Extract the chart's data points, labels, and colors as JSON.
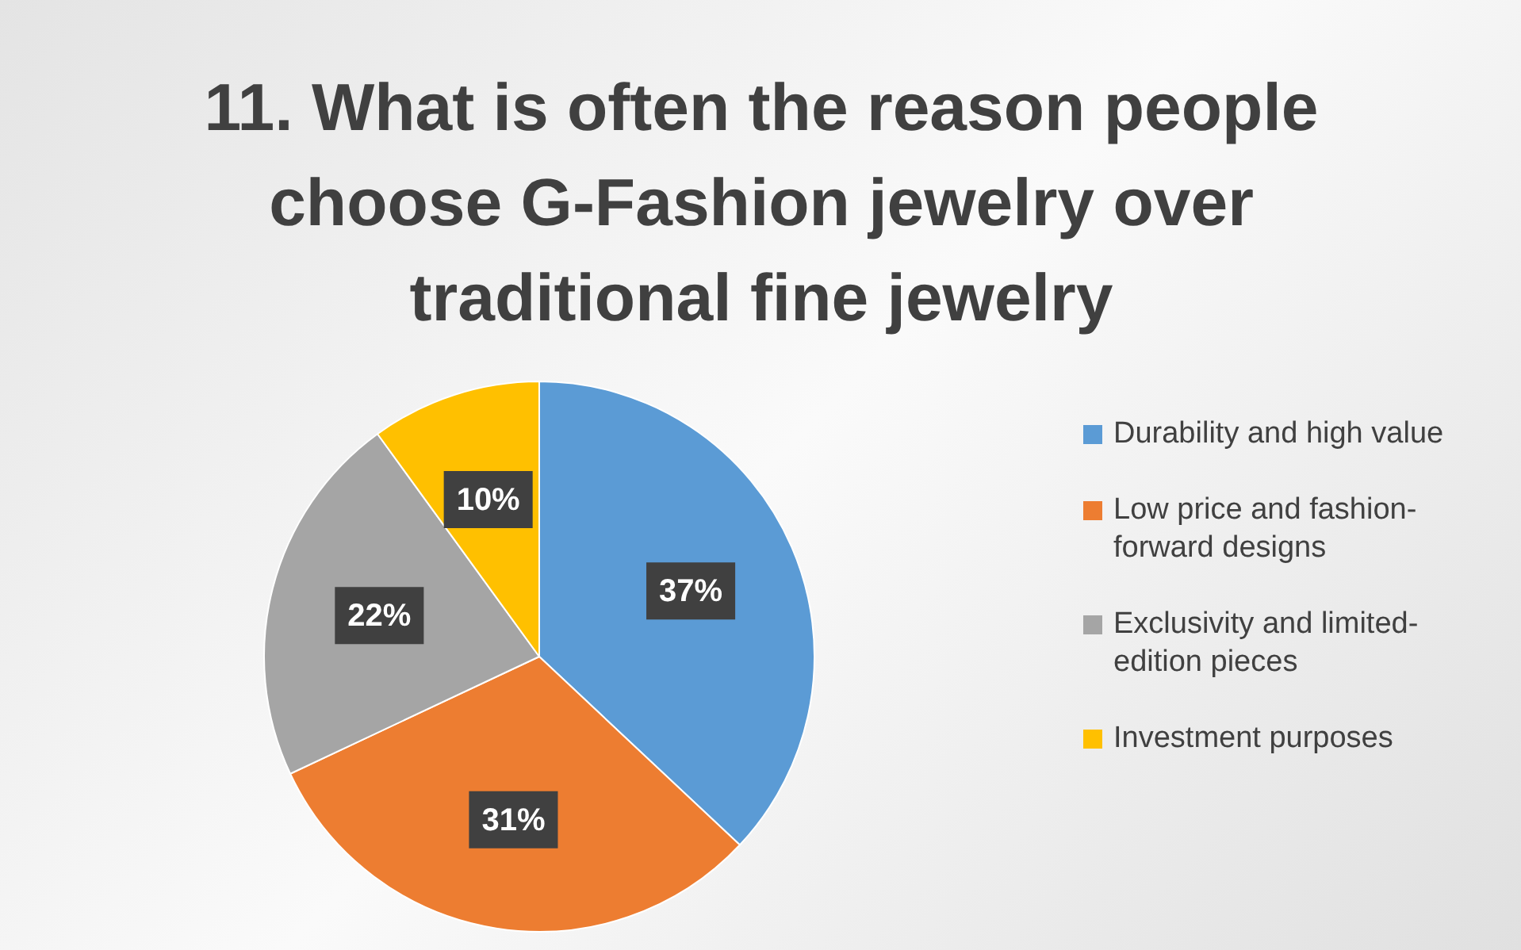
{
  "chart_data": {
    "type": "pie",
    "title": "11. What is often the reason people choose G-Fashion jewelry over traditional fine jewelry",
    "categories": [
      "Durability and high value",
      "Low price and fashion-forward designs",
      "Exclusivity and limited-edition pieces",
      "Investment purposes"
    ],
    "values": [
      37,
      31,
      22,
      10
    ],
    "colors": [
      "#5b9bd5",
      "#ed7d31",
      "#a5a5a5",
      "#ffc000"
    ],
    "value_labels": [
      "37%",
      "31%",
      "22%",
      "10%"
    ],
    "legend": "right"
  }
}
